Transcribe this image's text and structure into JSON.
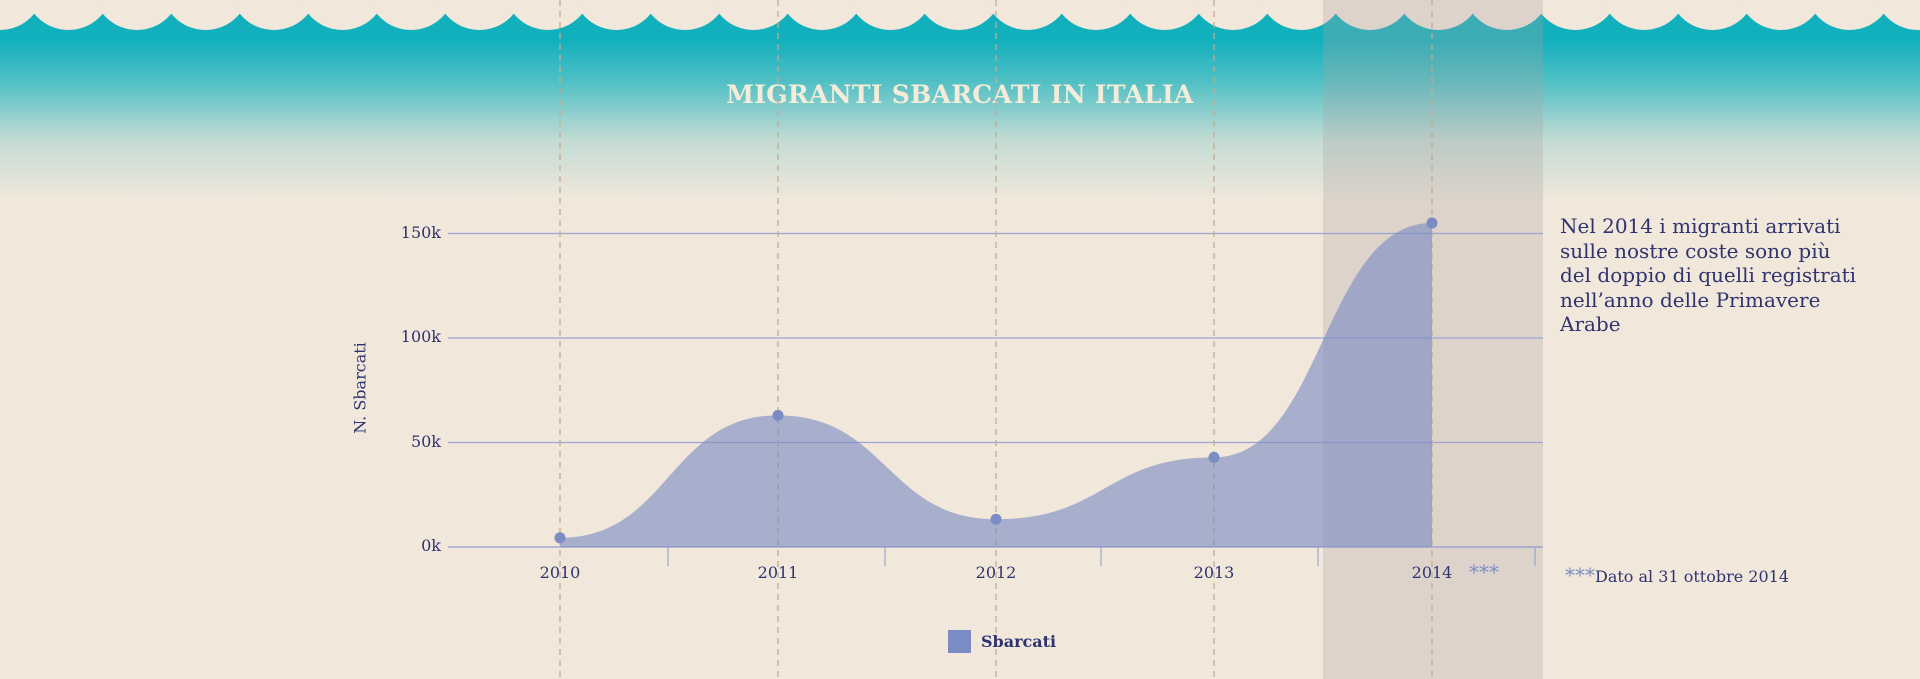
{
  "chart_data": {
    "type": "area",
    "title": "MIGRANTI SBARCATI IN ITALIA",
    "ylabel": "N. Sbarcati",
    "xlabel": "",
    "categories": [
      "2010",
      "2011",
      "2012",
      "2013",
      "2014"
    ],
    "x_tick_labels": [
      "2010",
      "2011",
      "2012",
      "2013",
      "2014"
    ],
    "highlighted_category_marker": "***",
    "y_ticks": [
      0,
      50000,
      100000,
      150000
    ],
    "y_tick_labels": [
      "0k",
      "50k",
      "100k",
      "150k"
    ],
    "ylim": [
      0,
      150000
    ],
    "grid": true,
    "legend_position": "bottom-center",
    "series": [
      {
        "name": "Sbarcati",
        "values": [
          4400,
          63000,
          13300,
          42900,
          155000
        ],
        "color": "#7b8cc4"
      }
    ],
    "annotation": "Nel 2014 i migranti arrivati sulle nostre coste sono più del doppio di quelli registrati nell’anno delle Primavere Arabe",
    "footnote_marker": "***",
    "footnote": "Dato al 31 ottobre 2014"
  }
}
